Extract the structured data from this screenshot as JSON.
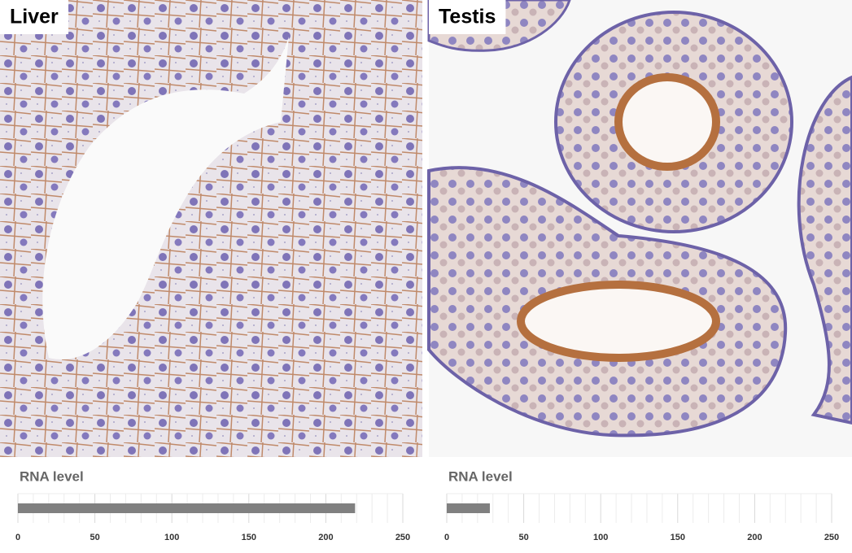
{
  "chart_data": [
    {
      "type": "bar",
      "tissue": "Liver",
      "title": "RNA level",
      "values": [
        219
      ],
      "color": "#808080",
      "xlim": [
        0,
        250
      ],
      "xticks": [
        0,
        50,
        100,
        150,
        200,
        250
      ],
      "minor_xticks": [
        10,
        20,
        30,
        40,
        60,
        70,
        80,
        90,
        110,
        120,
        130,
        140,
        160,
        170,
        180,
        190,
        210,
        220,
        230,
        240
      ],
      "grid": true
    },
    {
      "type": "bar",
      "tissue": "Testis",
      "title": "RNA level",
      "values": [
        28
      ],
      "color": "#808080",
      "xlim": [
        0,
        250
      ],
      "xticks": [
        0,
        50,
        100,
        150,
        200,
        250
      ],
      "minor_xticks": [
        10,
        20,
        30,
        40,
        60,
        70,
        80,
        90,
        110,
        120,
        130,
        140,
        160,
        170,
        180,
        190,
        210,
        220,
        230,
        240
      ],
      "grid": true
    }
  ]
}
